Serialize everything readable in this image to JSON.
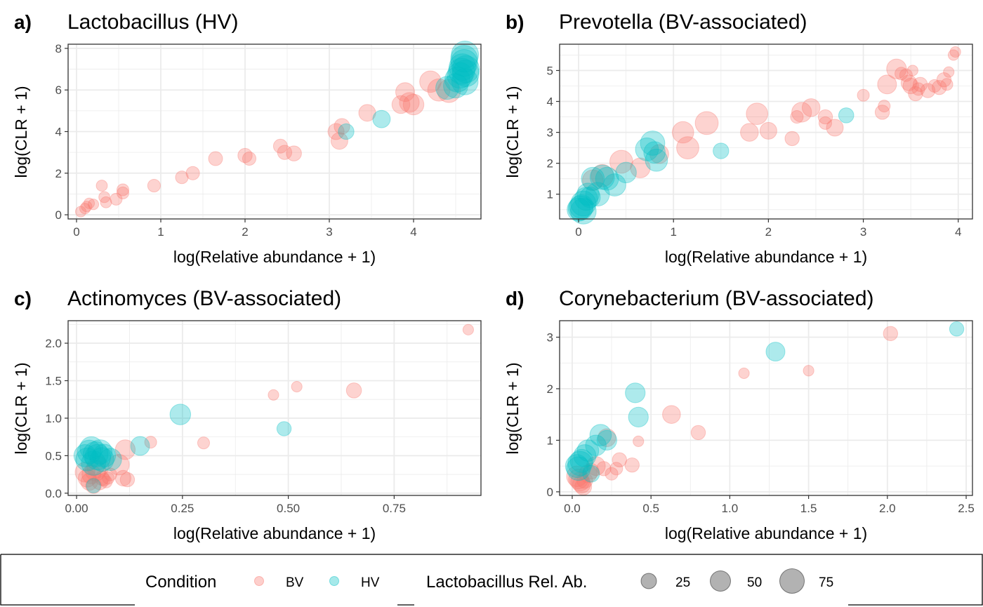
{
  "chart_data": [
    {
      "type": "scatter",
      "tag": "a)",
      "title": "Lactobacillus (HV)",
      "xlabel": "log(Relative abundance + 1)",
      "ylabel": "log(CLR + 1)",
      "xlim": [
        -0.1,
        4.8
      ],
      "ylim": [
        -0.2,
        8.2
      ],
      "xticks": [
        0,
        1,
        2,
        3,
        4
      ],
      "yticks": [
        0,
        2,
        4,
        6,
        8
      ],
      "grid": true,
      "series": [
        {
          "name": "BV",
          "color": "#F8766D",
          "points": [
            [
              0.05,
              0.15,
              5
            ],
            [
              0.1,
              0.3,
              5
            ],
            [
              0.12,
              0.4,
              5
            ],
            [
              0.15,
              0.55,
              5
            ],
            [
              0.2,
              0.5,
              5
            ],
            [
              0.3,
              1.4,
              6
            ],
            [
              0.33,
              0.85,
              6
            ],
            [
              0.35,
              0.6,
              6
            ],
            [
              0.47,
              0.75,
              8
            ],
            [
              0.55,
              1.05,
              8
            ],
            [
              0.55,
              1.2,
              8
            ],
            [
              0.92,
              1.4,
              10
            ],
            [
              1.25,
              1.8,
              10
            ],
            [
              1.38,
              2.0,
              12
            ],
            [
              1.65,
              2.7,
              14
            ],
            [
              2.0,
              2.85,
              15
            ],
            [
              2.05,
              2.7,
              12
            ],
            [
              2.42,
              3.3,
              14
            ],
            [
              2.47,
              3.0,
              15
            ],
            [
              2.58,
              2.95,
              18
            ],
            [
              3.08,
              4.0,
              22
            ],
            [
              3.12,
              3.55,
              25
            ],
            [
              3.15,
              4.25,
              20
            ],
            [
              3.45,
              4.9,
              25
            ],
            [
              3.85,
              5.3,
              30
            ],
            [
              3.9,
              5.9,
              35
            ],
            [
              3.95,
              5.4,
              40
            ],
            [
              4.0,
              5.3,
              45
            ],
            [
              4.2,
              6.4,
              50
            ],
            [
              4.3,
              6.0,
              55
            ],
            [
              4.42,
              5.95,
              60
            ]
          ]
        },
        {
          "name": "HV",
          "color": "#00BFC4",
          "points": [
            [
              3.2,
              4.0,
              20
            ],
            [
              3.62,
              4.6,
              28
            ],
            [
              4.4,
              6.1,
              60
            ],
            [
              4.5,
              6.2,
              70
            ],
            [
              4.52,
              6.5,
              75
            ],
            [
              4.55,
              6.7,
              80
            ],
            [
              4.57,
              6.9,
              85
            ],
            [
              4.58,
              7.1,
              88
            ],
            [
              4.6,
              7.3,
              90
            ],
            [
              4.6,
              7.5,
              90
            ],
            [
              4.61,
              6.4,
              85
            ],
            [
              4.61,
              7.7,
              92
            ],
            [
              4.62,
              7.0,
              92
            ],
            [
              4.62,
              6.8,
              88
            ]
          ]
        }
      ]
    },
    {
      "type": "scatter",
      "tag": "b)",
      "title": "Prevotella (BV-associated)",
      "xlabel": "log(Relative abundance + 1)",
      "ylabel": "log(CLR + 1)",
      "xlim": [
        -0.2,
        4.15
      ],
      "ylim": [
        0.2,
        5.85
      ],
      "xticks": [
        0,
        1,
        2,
        3,
        4
      ],
      "yticks": [
        1,
        2,
        3,
        4,
        5
      ],
      "grid": true,
      "series": [
        {
          "name": "BV",
          "color": "#F8766D",
          "points": [
            [
              0.15,
              1.45,
              45
            ],
            [
              0.25,
              1.6,
              55
            ],
            [
              0.45,
              2.05,
              60
            ],
            [
              0.65,
              1.85,
              40
            ],
            [
              0.85,
              2.3,
              35
            ],
            [
              1.1,
              3.0,
              50
            ],
            [
              1.15,
              2.5,
              55
            ],
            [
              1.35,
              3.3,
              60
            ],
            [
              1.8,
              3.0,
              30
            ],
            [
              1.88,
              3.6,
              50
            ],
            [
              2.0,
              3.05,
              25
            ],
            [
              2.25,
              2.8,
              15
            ],
            [
              2.3,
              3.5,
              10
            ],
            [
              2.35,
              3.65,
              40
            ],
            [
              2.45,
              3.8,
              30
            ],
            [
              2.6,
              3.5,
              15
            ],
            [
              2.6,
              3.3,
              10
            ],
            [
              2.7,
              3.15,
              25
            ],
            [
              3.0,
              4.2,
              8
            ],
            [
              3.2,
              3.65,
              15
            ],
            [
              3.22,
              3.85,
              8
            ],
            [
              3.25,
              4.55,
              35
            ],
            [
              3.35,
              5.05,
              40
            ],
            [
              3.4,
              4.9,
              10
            ],
            [
              3.45,
              4.85,
              10
            ],
            [
              3.48,
              4.6,
              20
            ],
            [
              3.5,
              4.5,
              20
            ],
            [
              3.52,
              5.0,
              5
            ],
            [
              3.55,
              4.25,
              15
            ],
            [
              3.58,
              4.4,
              10
            ],
            [
              3.6,
              4.55,
              15
            ],
            [
              3.68,
              4.35,
              15
            ],
            [
              3.75,
              4.5,
              10
            ],
            [
              3.8,
              4.45,
              15
            ],
            [
              3.85,
              4.7,
              15
            ],
            [
              3.88,
              4.55,
              8
            ],
            [
              3.9,
              4.95,
              5
            ],
            [
              3.95,
              5.5,
              5
            ],
            [
              3.97,
              5.6,
              5
            ]
          ]
        },
        {
          "name": "HV",
          "color": "#00BFC4",
          "points": [
            [
              0.0,
              0.5,
              60
            ],
            [
              0.02,
              0.55,
              70
            ],
            [
              0.03,
              0.6,
              65
            ],
            [
              0.05,
              0.7,
              75
            ],
            [
              0.05,
              0.45,
              80
            ],
            [
              0.08,
              0.85,
              60
            ],
            [
              0.1,
              1.0,
              55
            ],
            [
              0.12,
              0.9,
              45
            ],
            [
              0.15,
              1.5,
              60
            ],
            [
              0.2,
              1.0,
              65
            ],
            [
              0.25,
              1.55,
              70
            ],
            [
              0.3,
              1.5,
              60
            ],
            [
              0.38,
              1.3,
              55
            ],
            [
              0.5,
              1.7,
              45
            ],
            [
              0.72,
              2.45,
              60
            ],
            [
              0.78,
              2.65,
              70
            ],
            [
              0.8,
              2.35,
              50
            ],
            [
              0.82,
              2.1,
              55
            ],
            [
              1.5,
              2.4,
              20
            ],
            [
              2.82,
              3.55,
              18
            ]
          ]
        }
      ]
    },
    {
      "type": "scatter",
      "tag": "c)",
      "title": "Actinomyces (BV-associated)",
      "xlabel": "log(Relative abundance + 1)",
      "ylabel": "log(CLR + 1)",
      "xlim": [
        -0.02,
        0.955
      ],
      "ylim": [
        -0.03,
        2.3
      ],
      "xticks": [
        0.0,
        0.25,
        0.5,
        0.75
      ],
      "xtick_labels": [
        "0.00",
        "0.25",
        "0.50",
        "0.75"
      ],
      "yticks": [
        0.0,
        0.5,
        1.0,
        1.5,
        2.0
      ],
      "ytick_labels": [
        "0.0",
        "0.5",
        "1.0",
        "1.5",
        "2.0"
      ],
      "grid": true,
      "series": [
        {
          "name": "BV",
          "color": "#F8766D",
          "points": [
            [
              0.02,
              0.28,
              40
            ],
            [
              0.025,
              0.2,
              30
            ],
            [
              0.03,
              0.15,
              25
            ],
            [
              0.035,
              0.25,
              35
            ],
            [
              0.04,
              0.1,
              20
            ],
            [
              0.045,
              0.3,
              45
            ],
            [
              0.05,
              0.35,
              50
            ],
            [
              0.055,
              0.15,
              20
            ],
            [
              0.06,
              0.2,
              15
            ],
            [
              0.065,
              0.18,
              10
            ],
            [
              0.07,
              0.15,
              8
            ],
            [
              0.075,
              0.2,
              8
            ],
            [
              0.08,
              0.25,
              10
            ],
            [
              0.1,
              0.38,
              45
            ],
            [
              0.11,
              0.2,
              20
            ],
            [
              0.115,
              0.58,
              40
            ],
            [
              0.12,
              0.18,
              15
            ],
            [
              0.175,
              0.68,
              8
            ],
            [
              0.3,
              0.67,
              8
            ],
            [
              0.465,
              1.31,
              5
            ],
            [
              0.52,
              1.42,
              5
            ],
            [
              0.655,
              1.37,
              18
            ],
            [
              0.925,
              2.18,
              5
            ]
          ]
        },
        {
          "name": "HV",
          "color": "#00BFC4",
          "points": [
            [
              0.02,
              0.5,
              55
            ],
            [
              0.025,
              0.45,
              60
            ],
            [
              0.03,
              0.55,
              65
            ],
            [
              0.035,
              0.6,
              60
            ],
            [
              0.04,
              0.4,
              70
            ],
            [
              0.04,
              0.1,
              15
            ],
            [
              0.045,
              0.52,
              75
            ],
            [
              0.05,
              0.48,
              80
            ],
            [
              0.055,
              0.55,
              70
            ],
            [
              0.06,
              0.45,
              65
            ],
            [
              0.065,
              0.5,
              60
            ],
            [
              0.08,
              0.45,
              55
            ],
            [
              0.15,
              0.63,
              35
            ],
            [
              0.245,
              1.05,
              45
            ],
            [
              0.49,
              0.86,
              15
            ]
          ]
        }
      ]
    },
    {
      "type": "scatter",
      "tag": "d)",
      "title": "Corynebacterium (BV-associated)",
      "xlabel": "log(Relative abundance + 1)",
      "ylabel": "log(CLR + 1)",
      "xlim": [
        -0.08,
        2.54
      ],
      "ylim": [
        -0.07,
        3.32
      ],
      "xticks": [
        0.0,
        0.5,
        1.0,
        1.5,
        2.0,
        2.5
      ],
      "xtick_labels": [
        "0.0",
        "0.5",
        "1.0",
        "1.5",
        "2.0",
        "2.5"
      ],
      "yticks": [
        0,
        1,
        2,
        3
      ],
      "grid": true,
      "series": [
        {
          "name": "BV",
          "color": "#F8766D",
          "points": [
            [
              0.03,
              0.3,
              45
            ],
            [
              0.04,
              0.25,
              40
            ],
            [
              0.05,
              0.2,
              35
            ],
            [
              0.06,
              0.15,
              30
            ],
            [
              0.07,
              0.1,
              25
            ],
            [
              0.08,
              0.22,
              20
            ],
            [
              0.1,
              0.35,
              30
            ],
            [
              0.12,
              0.4,
              20
            ],
            [
              0.15,
              0.5,
              35
            ],
            [
              0.2,
              0.45,
              15
            ],
            [
              0.22,
              1.05,
              30
            ],
            [
              0.25,
              0.35,
              10
            ],
            [
              0.28,
              0.45,
              10
            ],
            [
              0.3,
              0.62,
              15
            ],
            [
              0.38,
              0.52,
              15
            ],
            [
              0.42,
              0.98,
              5
            ],
            [
              0.63,
              1.5,
              30
            ],
            [
              0.8,
              1.15,
              15
            ],
            [
              1.09,
              2.3,
              5
            ],
            [
              1.5,
              2.35,
              5
            ],
            [
              2.02,
              3.07,
              15
            ]
          ]
        },
        {
          "name": "HV",
          "color": "#00BFC4",
          "points": [
            [
              0.03,
              0.5,
              60
            ],
            [
              0.04,
              0.45,
              65
            ],
            [
              0.05,
              0.55,
              70
            ],
            [
              0.06,
              0.6,
              60
            ],
            [
              0.08,
              0.7,
              55
            ],
            [
              0.1,
              0.8,
              50
            ],
            [
              0.12,
              0.35,
              25
            ],
            [
              0.15,
              0.9,
              45
            ],
            [
              0.18,
              1.1,
              50
            ],
            [
              0.22,
              1.0,
              40
            ],
            [
              0.4,
              1.92,
              40
            ],
            [
              0.42,
              1.45,
              40
            ],
            [
              1.29,
              2.72,
              35
            ],
            [
              2.44,
              3.16,
              15
            ]
          ]
        }
      ]
    }
  ],
  "legend": {
    "condition_title": "Condition",
    "condition_items": [
      {
        "label": "BV",
        "color": "#F8766D"
      },
      {
        "label": "HV",
        "color": "#00BFC4"
      }
    ],
    "size_title": "Lactobacillus Rel. Ab.",
    "size_items": [
      {
        "label": "25",
        "value": 25
      },
      {
        "label": "50",
        "value": 50
      },
      {
        "label": "75",
        "value": 75
      }
    ]
  }
}
